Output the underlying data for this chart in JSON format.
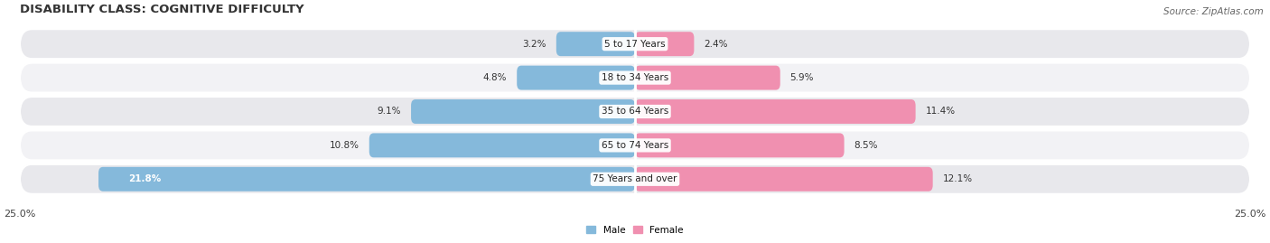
{
  "title": "DISABILITY CLASS: COGNITIVE DIFFICULTY",
  "source": "Source: ZipAtlas.com",
  "categories": [
    "5 to 17 Years",
    "18 to 34 Years",
    "35 to 64 Years",
    "65 to 74 Years",
    "75 Years and over"
  ],
  "male_values": [
    3.2,
    4.8,
    9.1,
    10.8,
    21.8
  ],
  "female_values": [
    2.4,
    5.9,
    11.4,
    8.5,
    12.1
  ],
  "male_color": "#85b9db",
  "female_color": "#f090b0",
  "male_label": "Male",
  "female_label": "Female",
  "xlim": 25.0,
  "row_color_odd": "#e8e8ec",
  "row_color_even": "#f2f2f5",
  "title_fontsize": 9.5,
  "source_fontsize": 7.5,
  "label_fontsize": 7.5,
  "tick_fontsize": 8,
  "bar_height": 0.72
}
